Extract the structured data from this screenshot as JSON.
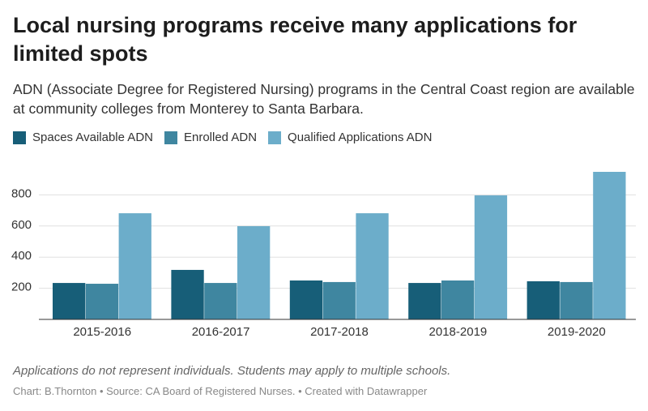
{
  "chart_data": {
    "type": "bar",
    "title": "Local nursing programs receive many applications for limited spots",
    "subtitle": "ADN (Associate Degree for Registered Nursing) programs in the Central Coast region are available at community colleges from Monterey to Santa Barbara.",
    "categories": [
      "2015-2016",
      "2016-2017",
      "2017-2018",
      "2018-2019",
      "2019-2020"
    ],
    "series": [
      {
        "name": "Spaces Available ADN",
        "color": "#175e78",
        "values": [
          234,
          318,
          250,
          234,
          245
        ]
      },
      {
        "name": "Enrolled ADN",
        "color": "#3f86a0",
        "values": [
          229,
          234,
          240,
          250,
          240
        ]
      },
      {
        "name": "Qualified Applications ADN",
        "color": "#6cadca",
        "values": [
          682,
          599,
          682,
          797,
          948
        ]
      }
    ],
    "ylim": [
      0,
      1000
    ],
    "yticks": [
      200,
      400,
      600,
      800
    ],
    "grid": true,
    "note": "Applications do not represent individuals. Students may apply to multiple schools.",
    "credit": "Chart: B.Thornton • Source: CA Board of Registered Nurses. • Created with Datawrapper"
  }
}
